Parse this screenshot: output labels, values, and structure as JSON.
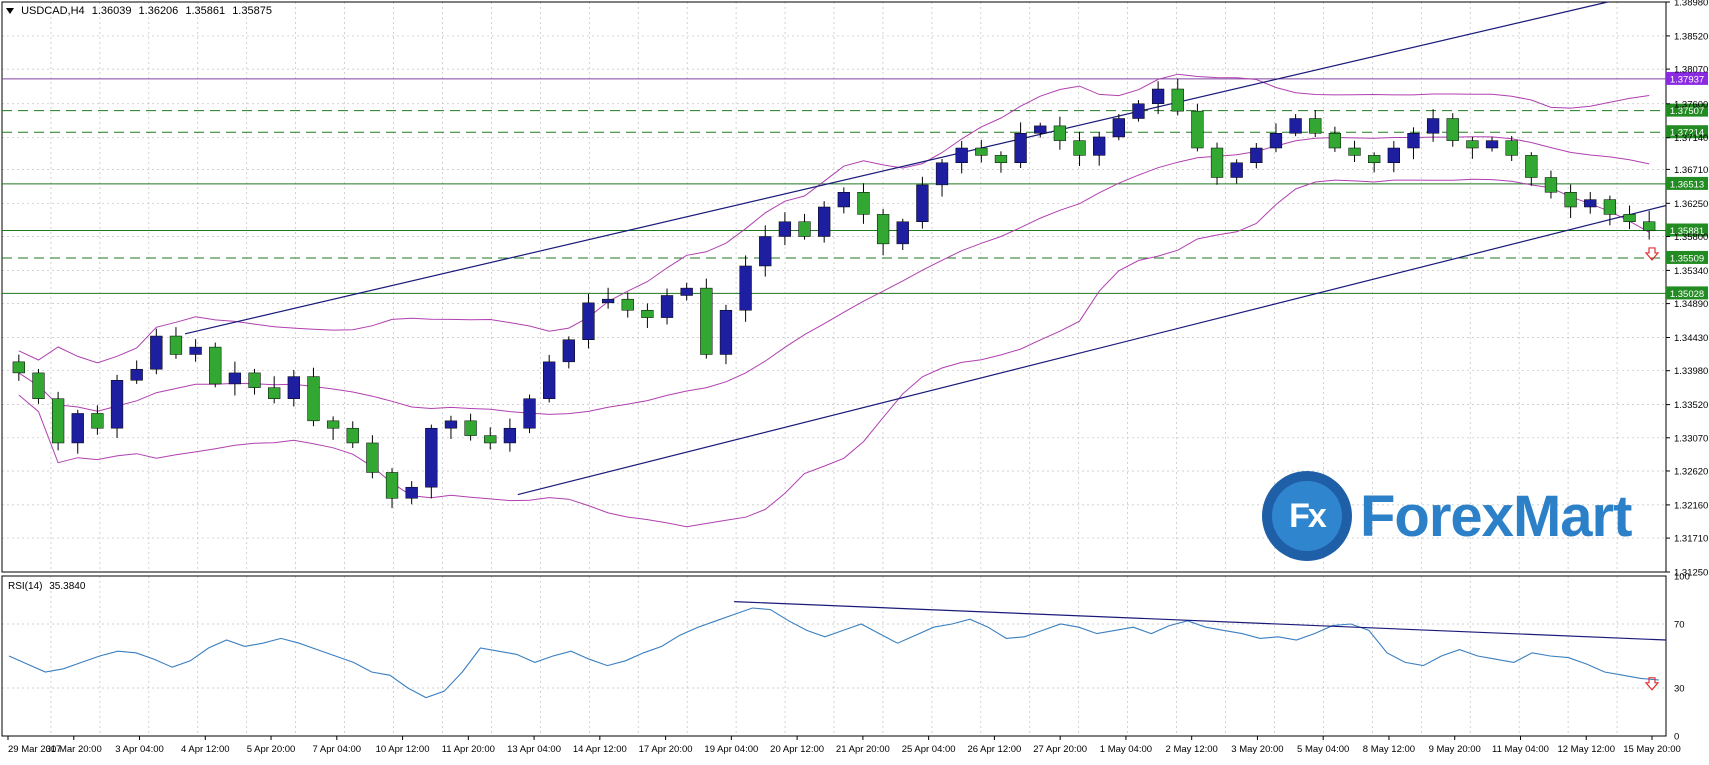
{
  "header": {
    "symbol": "USDCAD,H4",
    "open": "1.36039",
    "high": "1.36206",
    "low": "1.35861",
    "close": "1.35875"
  },
  "rsi_header": {
    "name": "RSI(14)",
    "value": "35.3840"
  },
  "logo": {
    "mark": "Fx",
    "text": "ForexMart"
  },
  "colors": {
    "background": "#ffffff",
    "grid": "#c0c0c0",
    "bull_candle": "#1e1ea0",
    "bear_candle": "#32a832",
    "bollinger": "#b040b0",
    "channel": "#1a1a7a",
    "level_line": "#1f7a1f",
    "resistance_line": "#8040a0",
    "rsi_line": "#3a7fc0",
    "label_green": "#228b22",
    "label_purple": "#8a2be2",
    "arrow": "#e03030"
  },
  "chart_data": {
    "type": "candlestick",
    "instrument": "USDCAD",
    "timeframe": "H4",
    "ylim": [
      1.3125,
      1.3898
    ],
    "price_ticks": [
      "1.38980",
      "1.38520",
      "1.38070",
      "1.37600",
      "1.37140",
      "1.36710",
      "1.36250",
      "1.35800",
      "1.35340",
      "1.34890",
      "1.34430",
      "1.33980",
      "1.33520",
      "1.33070",
      "1.32620",
      "1.32160",
      "1.31710",
      "1.31250"
    ],
    "x_ticks": [
      "29 Mar 2017",
      "30 Mar 20:00",
      "3 Apr 04:00",
      "4 Apr 12:00",
      "5 Apr 20:00",
      "7 Apr 04:00",
      "10 Apr 12:00",
      "11 Apr 20:00",
      "13 Apr 04:00",
      "14 Apr 12:00",
      "17 Apr 20:00",
      "19 Apr 04:00",
      "20 Apr 12:00",
      "21 Apr 20:00",
      "25 Apr 04:00",
      "26 Apr 12:00",
      "27 Apr 20:00",
      "1 May 04:00",
      "2 May 12:00",
      "3 May 20:00",
      "5 May 04:00",
      "8 May 12:00",
      "9 May 20:00",
      "11 May 04:00",
      "12 May 12:00",
      "15 May 20:00"
    ],
    "close_path": [
      1.3395,
      1.336,
      1.33,
      1.334,
      1.332,
      1.3385,
      1.34,
      1.3445,
      1.342,
      1.343,
      1.338,
      1.3395,
      1.3375,
      1.336,
      1.339,
      1.333,
      1.332,
      1.33,
      1.326,
      1.3225,
      1.324,
      1.332,
      1.333,
      1.331,
      1.33,
      1.332,
      1.336,
      1.341,
      1.344,
      1.349,
      1.3495,
      1.348,
      1.347,
      1.35,
      1.351,
      1.342,
      1.348,
      1.354,
      1.358,
      1.36,
      1.358,
      1.362,
      1.364,
      1.361,
      1.357,
      1.36,
      1.365,
      1.368,
      1.37,
      1.369,
      1.368,
      1.372,
      1.373,
      1.371,
      1.369,
      1.3715,
      1.374,
      1.376,
      1.378,
      1.375,
      1.37,
      1.366,
      1.368,
      1.37,
      1.372,
      1.374,
      1.372,
      1.37,
      1.369,
      1.368,
      1.37,
      1.372,
      1.374,
      1.371,
      1.37,
      1.371,
      1.369,
      1.366,
      1.364,
      1.362,
      1.363,
      1.361,
      1.36,
      1.3588
    ],
    "bands": {
      "period": 20,
      "deviations": 2
    },
    "levels": [
      {
        "price": 1.37937,
        "label": "1.37937",
        "style": "solid",
        "color": "#8a2be2"
      },
      {
        "price": 1.37507,
        "label": "1.37507",
        "style": "dashed",
        "color": "#228b22"
      },
      {
        "price": 1.37214,
        "label": "1.37214",
        "style": "dashed",
        "color": "#228b22"
      },
      {
        "price": 1.36513,
        "label": "1.36513",
        "style": "solid",
        "color": "#228b22"
      },
      {
        "price": 1.35881,
        "label": "1.35881",
        "style": "solid",
        "color": "#228b22"
      },
      {
        "price": 1.35509,
        "label": "1.35509",
        "style": "dashed",
        "color": "#228b22"
      },
      {
        "price": 1.35028,
        "label": "1.35028",
        "style": "solid",
        "color": "#228b22"
      }
    ],
    "channel_upper": [
      {
        "x": 0.11,
        "y": 1.3448
      },
      {
        "x": 0.965,
        "y": 1.3898
      }
    ],
    "channel_lower": [
      {
        "x": 0.31,
        "y": 1.323
      },
      {
        "x": 1.0,
        "y": 1.3622
      }
    ],
    "rsi": {
      "ylim": [
        0,
        100
      ],
      "levels": [
        30,
        70
      ],
      "ticks": [
        "100",
        "70",
        "30",
        "0"
      ],
      "trend_line": [
        {
          "x": 0.44,
          "y": 84
        },
        {
          "x": 1.0,
          "y": 60
        }
      ],
      "values": [
        50,
        45,
        40,
        42,
        46,
        50,
        53,
        52,
        48,
        43,
        47,
        55,
        60,
        56,
        58,
        61,
        58,
        54,
        50,
        46,
        40,
        38,
        30,
        24,
        28,
        40,
        55,
        53,
        51,
        46,
        50,
        53,
        48,
        44,
        47,
        52,
        56,
        63,
        68,
        72,
        76,
        80,
        79,
        72,
        66,
        62,
        66,
        70,
        64,
        58,
        63,
        68,
        70,
        73,
        68,
        61,
        62,
        66,
        70,
        68,
        64,
        66,
        68,
        64,
        69,
        72,
        68,
        66,
        64,
        61,
        62,
        60,
        64,
        69,
        70,
        66,
        52,
        46,
        44,
        50,
        54,
        50,
        48,
        46,
        52,
        50,
        49,
        45,
        40,
        38,
        36,
        35
      ]
    }
  }
}
